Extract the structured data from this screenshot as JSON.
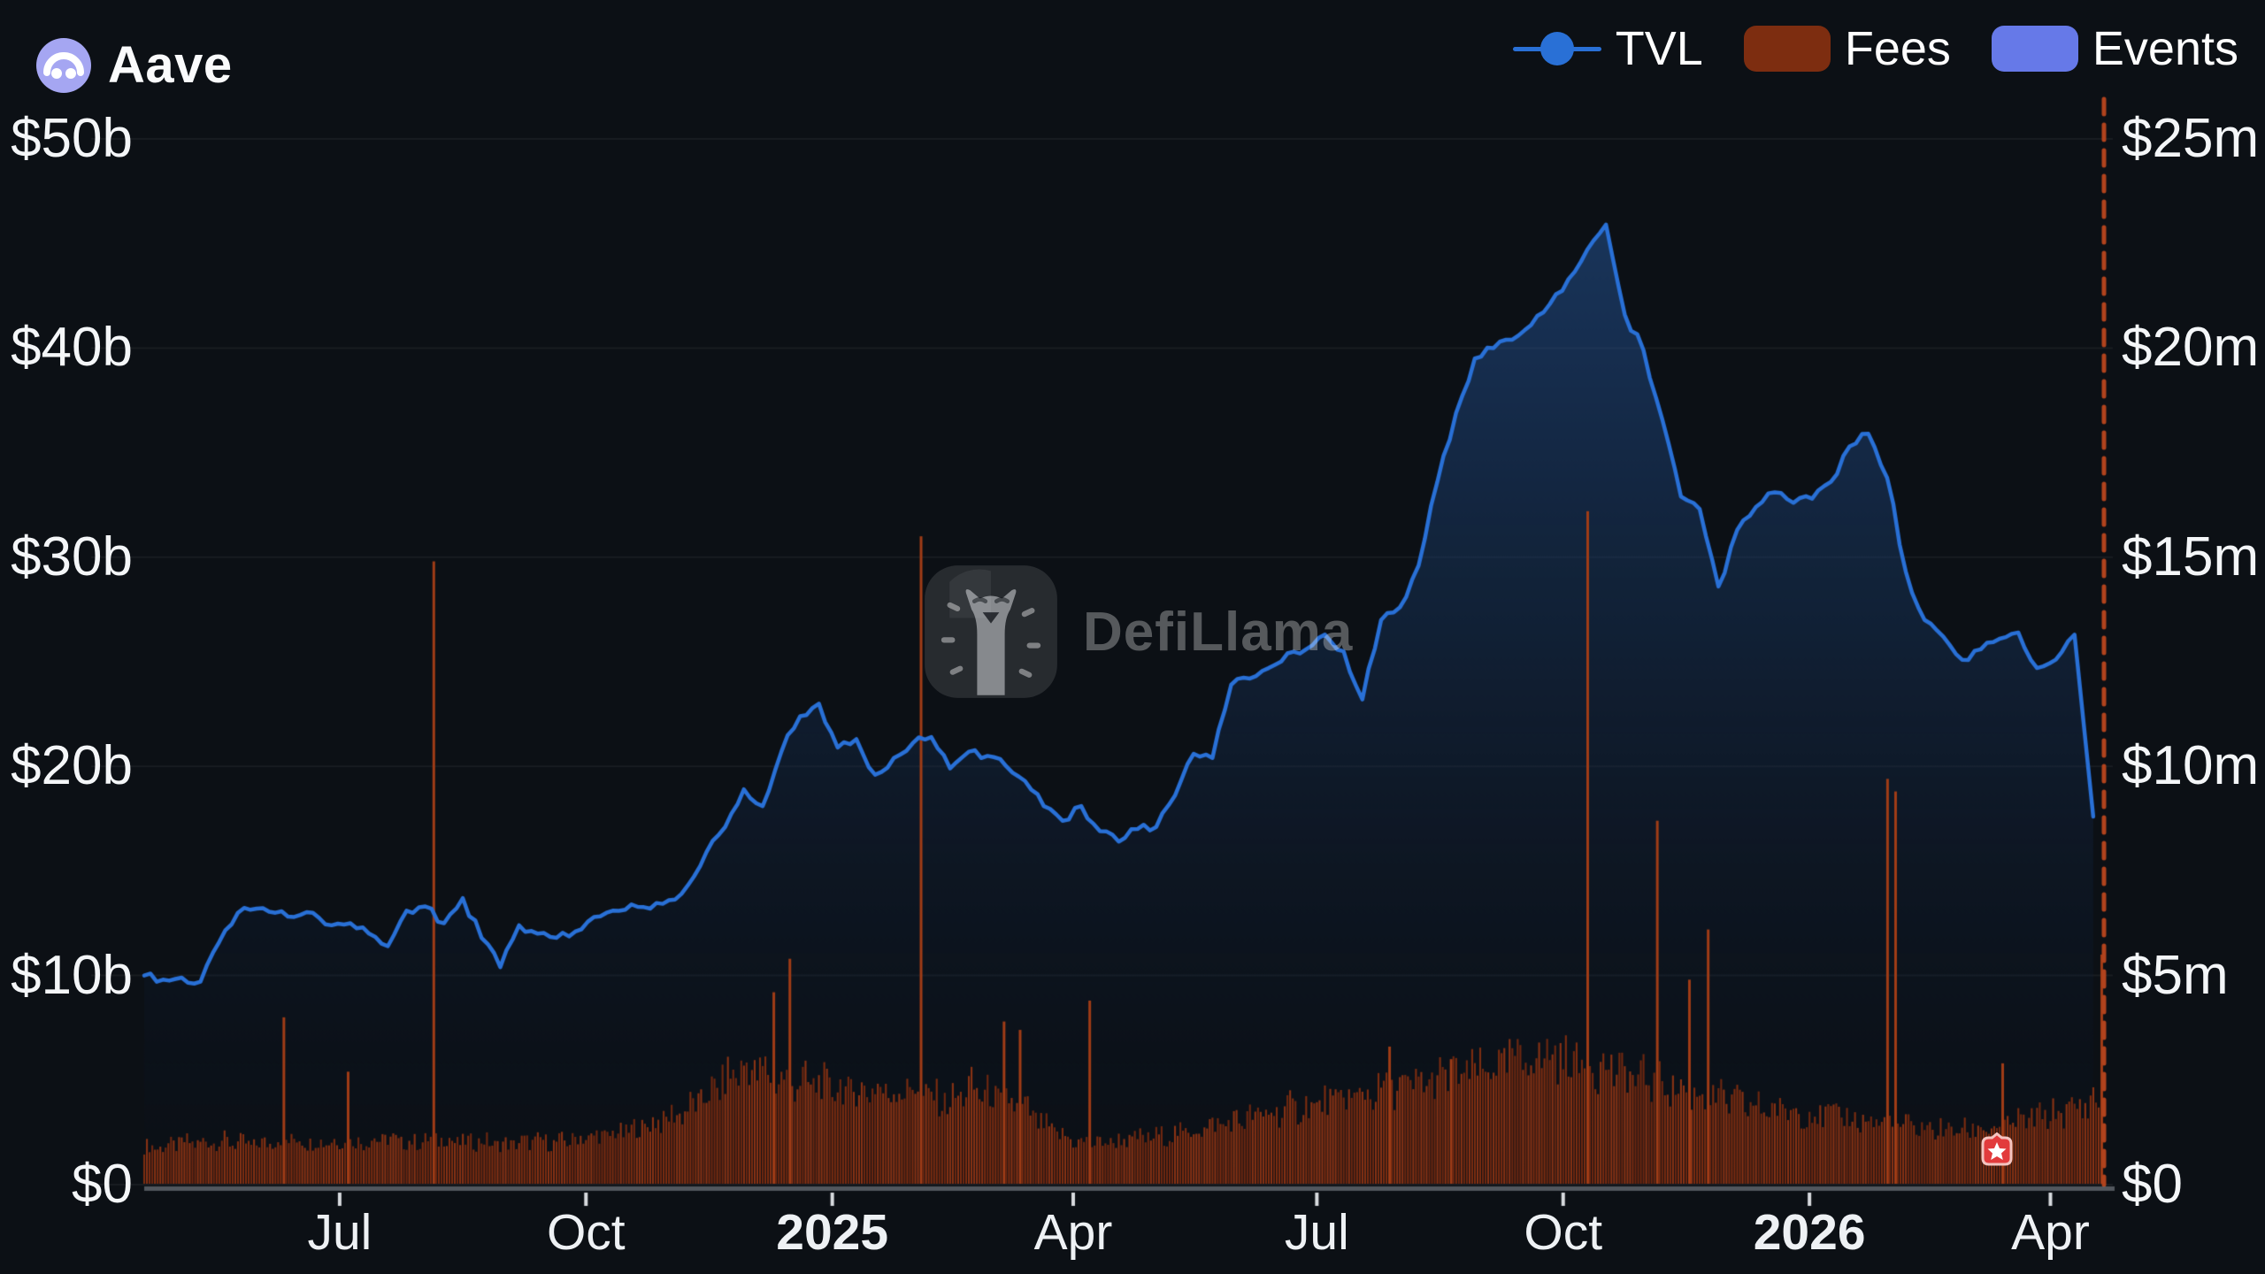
{
  "header": {
    "title": "Aave"
  },
  "legend": [
    {
      "label": "TVL",
      "type": "line-dot",
      "color": "#2970d6"
    },
    {
      "label": "Fees",
      "type": "swatch",
      "color": "#7d2d10"
    },
    {
      "label": "Events",
      "type": "swatch",
      "color": "#6679e8"
    }
  ],
  "watermark": {
    "text": "DefiLlama"
  },
  "axes": {
    "y_left": {
      "labels": [
        "$0",
        "$10b",
        "$20b",
        "$30b",
        "$40b",
        "$50b"
      ],
      "min": 0,
      "max": 50,
      "unit": "USD billions"
    },
    "y_right": {
      "labels": [
        "$0",
        "$5m",
        "$10m",
        "$15m",
        "$20m",
        "$25m"
      ],
      "min": 0,
      "max": 25,
      "unit": "USD millions"
    },
    "x": {
      "ticks": [
        {
          "label": "Jul",
          "date": "2024-07-01",
          "bold": false
        },
        {
          "label": "Oct",
          "date": "2024-10-01",
          "bold": false
        },
        {
          "label": "2025",
          "date": "2025-01-01",
          "bold": true
        },
        {
          "label": "Apr",
          "date": "2025-04-01",
          "bold": false
        },
        {
          "label": "Jul",
          "date": "2025-07-01",
          "bold": false
        },
        {
          "label": "Oct",
          "date": "2025-10-01",
          "bold": false
        },
        {
          "label": "2026",
          "date": "2026-01-01",
          "bold": true
        },
        {
          "label": "Apr",
          "date": "2026-04-01",
          "bold": false
        }
      ]
    }
  },
  "chart_data": {
    "type": "line+bar",
    "title": "Aave TVL, Fees and Events",
    "x_range": {
      "start": "2024-04-19",
      "end": "2026-04-21"
    },
    "ylim_left": [
      0,
      50
    ],
    "ylim_right": [
      0,
      25
    ],
    "grid": "horizontal",
    "legend_position": "top-right",
    "now_line": {
      "date": "2026-04-21",
      "style": "dashed",
      "color": "#b1431d"
    },
    "series": [
      {
        "name": "TVL",
        "type": "line",
        "axis": "left",
        "unit": "USD billions",
        "color": "#2970d6",
        "start_date": "2024-04-19",
        "interval_days": 7,
        "values": [
          10.0,
          9.8,
          9.9,
          9.7,
          11.6,
          13.0,
          13.2,
          13.0,
          12.8,
          13.0,
          12.4,
          12.5,
          12.0,
          11.4,
          13.1,
          13.3,
          12.5,
          13.7,
          11.8,
          10.4,
          12.4,
          12.0,
          11.8,
          12.1,
          12.8,
          13.1,
          13.4,
          13.2,
          13.6,
          14.3,
          15.9,
          17.1,
          18.9,
          18.1,
          20.7,
          22.4,
          23.0,
          20.9,
          21.3,
          19.6,
          20.4,
          21.1,
          21.4,
          19.9,
          20.7,
          20.5,
          20.0,
          19.3,
          18.1,
          17.4,
          18.1,
          16.9,
          16.4,
          17.0,
          17.1,
          18.6,
          20.6,
          20.4,
          23.9,
          24.2,
          24.7,
          25.4,
          25.6,
          26.3,
          25.5,
          23.2,
          27.0,
          27.6,
          29.6,
          33.6,
          36.9,
          39.5,
          40.0,
          40.4,
          41.1,
          42.1,
          43.3,
          44.7,
          45.9,
          41.6,
          39.9,
          36.6,
          32.9,
          32.3,
          28.6,
          31.3,
          32.4,
          33.1,
          32.6,
          32.8,
          33.6,
          35.3,
          35.9,
          33.8,
          29.3,
          27.0,
          26.2,
          25.1,
          25.6,
          26.1,
          26.4,
          24.7,
          25.1,
          26.3,
          17.6
        ]
      },
      {
        "name": "Fees",
        "type": "bar",
        "axis": "right",
        "unit": "USD millions per day",
        "color": "#7d2d10",
        "start_date": "2024-04-19",
        "interval_days": 7,
        "baseline_values": [
          0.9,
          0.9,
          1.0,
          1.0,
          1.05,
          1.0,
          0.95,
          1.05,
          1.1,
          1.0,
          1.05,
          1.0,
          1.05,
          1.1,
          1.0,
          1.05,
          1.1,
          1.0,
          1.05,
          0.95,
          1.0,
          1.05,
          1.0,
          1.1,
          1.15,
          1.2,
          1.3,
          1.45,
          1.6,
          1.8,
          2.1,
          2.5,
          2.8,
          2.7,
          2.5,
          2.45,
          2.4,
          2.3,
          2.25,
          2.3,
          2.2,
          2.35,
          2.1,
          1.95,
          2.3,
          2.15,
          2.0,
          1.8,
          1.4,
          1.15,
          1.0,
          1.0,
          1.05,
          1.1,
          1.15,
          1.2,
          1.3,
          1.4,
          1.5,
          1.6,
          1.7,
          1.8,
          1.85,
          1.95,
          2.05,
          2.15,
          2.25,
          2.3,
          2.4,
          2.5,
          2.6,
          2.7,
          2.8,
          2.95,
          3.05,
          3.1,
          3.0,
          2.9,
          2.8,
          2.65,
          2.5,
          2.4,
          2.3,
          2.15,
          2.05,
          1.95,
          1.85,
          1.8,
          1.75,
          1.7,
          1.65,
          1.6,
          1.5,
          1.45,
          1.4,
          1.35,
          1.3,
          1.3,
          1.35,
          1.4,
          1.5,
          1.6,
          1.7,
          1.8,
          2.0
        ],
        "spikes": [
          {
            "date": "2024-06-10",
            "value": 4.0
          },
          {
            "date": "2024-07-04",
            "value": 2.7
          },
          {
            "date": "2024-08-05",
            "value": 14.9
          },
          {
            "date": "2024-12-10",
            "value": 4.6
          },
          {
            "date": "2024-12-16",
            "value": 5.4
          },
          {
            "date": "2025-02-03",
            "value": 15.5
          },
          {
            "date": "2025-03-06",
            "value": 3.9
          },
          {
            "date": "2025-03-12",
            "value": 3.7
          },
          {
            "date": "2025-04-07",
            "value": 4.4
          },
          {
            "date": "2025-07-28",
            "value": 3.3
          },
          {
            "date": "2025-08-20",
            "value": 3.0
          },
          {
            "date": "2025-10-10",
            "value": 16.1
          },
          {
            "date": "2025-11-05",
            "value": 8.7
          },
          {
            "date": "2025-11-17",
            "value": 4.9
          },
          {
            "date": "2025-11-24",
            "value": 6.1
          },
          {
            "date": "2026-01-30",
            "value": 9.7
          },
          {
            "date": "2026-02-02",
            "value": 9.4
          },
          {
            "date": "2026-03-14",
            "value": 2.9
          },
          {
            "date": "2026-04-20",
            "value": 5.5
          }
        ]
      },
      {
        "name": "Events",
        "type": "marker",
        "axis": "right",
        "color": "#6679e8",
        "points": [
          {
            "date": "2026-03-11",
            "value": 0.9,
            "icon": "star"
          }
        ]
      }
    ]
  },
  "colors": {
    "background": "#0c1015",
    "tvl_line": "#2970d6",
    "fees_bar": "#7d2d10",
    "events_swatch": "#6679e8",
    "now_line": "#b1431d",
    "event_badge": "#e23b3c",
    "logo_circle": "#a5a6f2"
  }
}
